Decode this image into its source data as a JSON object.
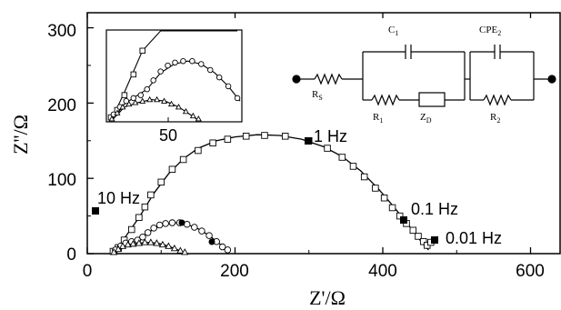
{
  "chart_data": {
    "type": "scatter",
    "title": "",
    "xlabel": "Z'/Ω",
    "ylabel": "Z''/Ω",
    "xlim": [
      0,
      640
    ],
    "ylim": [
      0,
      320
    ],
    "xticks": [
      "0",
      "200",
      "400",
      "600"
    ],
    "yticks": [
      "0",
      "100",
      "200",
      "300"
    ],
    "annotations": [
      "1 Hz",
      "10 Hz",
      "0.1 Hz",
      "0.01 Hz"
    ],
    "series": [
      {
        "marker": "square",
        "x": [
          35,
          42,
          50,
          60,
          70,
          78,
          86,
          100,
          115,
          130,
          150,
          170,
          190,
          215,
          240,
          268,
          300,
          325,
          345,
          360,
          375,
          390,
          402,
          413,
          423,
          432,
          441,
          448,
          455,
          460,
          465
        ],
        "y": [
          3,
          8,
          18,
          32,
          48,
          62,
          78,
          95,
          112,
          125,
          137,
          147,
          152,
          156,
          157,
          156,
          150,
          140,
          128,
          116,
          102,
          87,
          74,
          61,
          50,
          40,
          31,
          23,
          16,
          11,
          15
        ],
        "fit_x": [
          35,
          50,
          70,
          90,
          110,
          130,
          150,
          175,
          200,
          230,
          260,
          290,
          320,
          345,
          370,
          395,
          415,
          430,
          445,
          455,
          462
        ],
        "fit_y": [
          0,
          20,
          48,
          80,
          106,
          126,
          140,
          150,
          155,
          158,
          157,
          152,
          142,
          129,
          110,
          85,
          62,
          44,
          25,
          12,
          5
        ]
      },
      {
        "marker": "circle",
        "x": [
          38,
          45,
          52,
          60,
          68,
          75,
          82,
          90,
          98,
          106,
          115,
          125,
          135,
          145,
          155,
          165,
          175,
          183,
          190
        ],
        "y": [
          5,
          10,
          14,
          16,
          18,
          22,
          28,
          34,
          38,
          40,
          41,
          41,
          39,
          35,
          30,
          24,
          16,
          9,
          5
        ],
        "fit_x": [
          38,
          50,
          62,
          75,
          90,
          105,
          120,
          135,
          150,
          165,
          178,
          190
        ],
        "fit_y": [
          3,
          12,
          17,
          22,
          33,
          39,
          41,
          39,
          33,
          24,
          14,
          4
        ]
      },
      {
        "marker": "triangle",
        "x": [
          36,
          42,
          48,
          55,
          62,
          70,
          78,
          86,
          94,
          102,
          110,
          118,
          126,
          132
        ],
        "y": [
          2,
          6,
          10,
          12,
          13,
          14,
          15,
          15,
          14,
          12,
          10,
          7,
          4,
          2
        ],
        "fit_x": [
          36,
          50,
          65,
          80,
          95,
          110,
          125,
          132
        ],
        "fit_y": [
          1,
          10,
          13,
          15,
          14,
          10,
          4,
          1
        ]
      }
    ]
  },
  "inset": {
    "tick_label": "50"
  },
  "circuit": {
    "labels": {
      "rs": "R",
      "rs_sub": "S",
      "c1": "C",
      "c1_sub": "1",
      "cpe": "CPE",
      "cpe_sub": "2",
      "r1": "R",
      "r1_sub": "1",
      "zd": "Z",
      "zd_sub": "D",
      "r2": "R",
      "r2_sub": "2"
    }
  }
}
